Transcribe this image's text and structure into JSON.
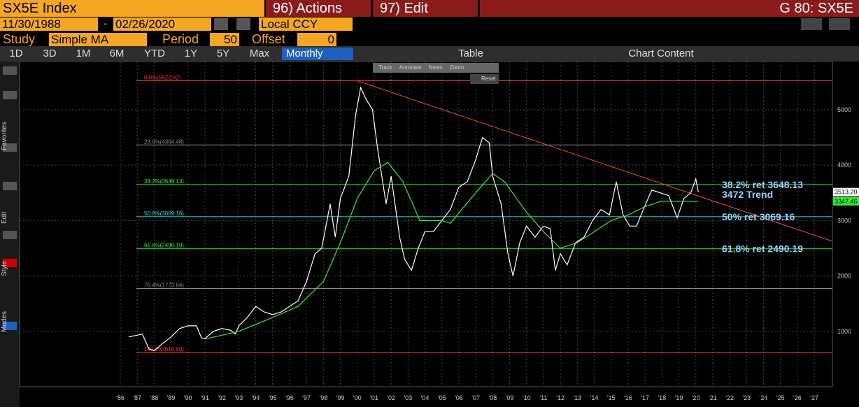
{
  "header": {
    "ticker": "SX5E Index",
    "actions": "96) Actions",
    "edit": "97) Edit",
    "code": "G 80: SX5E"
  },
  "dates": {
    "start": "11/30/1988",
    "separator": "-",
    "end": "02/26/2020",
    "currency": "Local CCY"
  },
  "study": {
    "label": "Study",
    "value": "Simple MA",
    "period_label": "Period",
    "period": 50,
    "offset_label": "Offset",
    "offset": 0
  },
  "toolbar": {
    "ranges": [
      "1D",
      "3D",
      "1M",
      "6M",
      "YTD",
      "1Y",
      "5Y",
      "Max"
    ],
    "interval": "Monthly",
    "table": "Table",
    "chart_content": "Chart Content"
  },
  "mini_toolbar": {
    "items": [
      "Track",
      "Annotate",
      "News",
      "Zoom"
    ],
    "reset": "Reset"
  },
  "sidebar": {
    "sections": [
      "Favorites",
      "Edit",
      "Style",
      "Modes"
    ]
  },
  "chart_data": {
    "type": "line",
    "grid": true,
    "xlim": [
      1980.05,
      2028.07
    ],
    "ylim": [
      0,
      5870
    ],
    "yticks": [
      1000,
      2000,
      3000,
      4000,
      5000
    ],
    "xticks": [
      {
        "value": 1986,
        "label": "'86"
      },
      {
        "value": 1987,
        "label": "'87"
      },
      {
        "value": 1988,
        "label": "'88"
      },
      {
        "value": 1989,
        "label": "'89"
      },
      {
        "value": 1990,
        "label": "'90"
      },
      {
        "value": 1991,
        "label": "'91"
      },
      {
        "value": 1992,
        "label": "'92"
      },
      {
        "value": 1993,
        "label": "'93"
      },
      {
        "value": 1994,
        "label": "'94"
      },
      {
        "value": 1995,
        "label": "'95"
      },
      {
        "value": 1996,
        "label": "'96"
      },
      {
        "value": 1997,
        "label": "'97"
      },
      {
        "value": 1998,
        "label": "'98"
      },
      {
        "value": 1999,
        "label": "'99"
      },
      {
        "value": 2000,
        "label": "'00"
      },
      {
        "value": 2001,
        "label": "'01"
      },
      {
        "value": 2002,
        "label": "'02"
      },
      {
        "value": 2003,
        "label": "'03"
      },
      {
        "value": 2004,
        "label": "'04"
      },
      {
        "value": 2005,
        "label": "'05"
      },
      {
        "value": 2006,
        "label": "'06"
      },
      {
        "value": 2007,
        "label": "'07"
      },
      {
        "value": 2008,
        "label": "'08"
      },
      {
        "value": 2009,
        "label": "'09"
      },
      {
        "value": 2010,
        "label": "'10"
      },
      {
        "value": 2011,
        "label": "'11"
      },
      {
        "value": 2012,
        "label": "'12"
      },
      {
        "value": 2013,
        "label": "'13"
      },
      {
        "value": 2014,
        "label": "'14"
      },
      {
        "value": 2015,
        "label": "'15"
      },
      {
        "value": 2016,
        "label": "'16"
      },
      {
        "value": 2017,
        "label": "'17"
      },
      {
        "value": 2018,
        "label": "'18"
      },
      {
        "value": 2019,
        "label": "'19"
      },
      {
        "value": 2020,
        "label": "'20"
      },
      {
        "value": 2021,
        "label": "'21"
      },
      {
        "value": 2022,
        "label": "'22"
      },
      {
        "value": 2023,
        "label": "'23"
      },
      {
        "value": 2024,
        "label": "'24"
      },
      {
        "value": 2025,
        "label": "'25"
      },
      {
        "value": 2026,
        "label": "'26"
      },
      {
        "value": 2027,
        "label": "'27"
      }
    ],
    "series": [
      {
        "color": "#ffffff",
        "x": [
          1986.5,
          1987.0,
          1987.3,
          1987.7,
          1988.0,
          1988.5,
          1989.0,
          1989.5,
          1990.0,
          1990.5,
          1990.8,
          1991.0,
          1991.5,
          1992.0,
          1992.5,
          1992.8,
          1993.0,
          1993.5,
          1994.0,
          1994.5,
          1995.0,
          1995.5,
          1996.0,
          1996.5,
          1997.0,
          1997.5,
          1997.9,
          1998.4,
          1998.7,
          1999.0,
          1999.5,
          1999.9,
          2000.2,
          2000.5,
          2000.9,
          2001.2,
          2001.7,
          2002.0,
          2002.5,
          2002.8,
          2003.2,
          2003.6,
          2004.0,
          2004.5,
          2005.0,
          2005.5,
          2006.0,
          2006.5,
          2007.0,
          2007.4,
          2007.8,
          2008.0,
          2008.5,
          2008.9,
          2009.2,
          2009.6,
          2010.0,
          2010.5,
          2011.0,
          2011.4,
          2011.7,
          2012.0,
          2012.4,
          2012.9,
          2013.4,
          2013.9,
          2014.4,
          2014.9,
          2015.3,
          2015.7,
          2016.1,
          2016.5,
          2016.9,
          2017.4,
          2017.9,
          2018.4,
          2018.9,
          2019.3,
          2019.7,
          2020.0,
          2020.15
        ],
        "values": [
          900,
          930,
          950,
          680,
          650,
          780,
          900,
          1050,
          1100,
          1100,
          880,
          870,
          1000,
          1050,
          1020,
          950,
          1100,
          1250,
          1450,
          1350,
          1300,
          1350,
          1450,
          1550,
          1900,
          2400,
          2500,
          3300,
          2700,
          3400,
          3800,
          4900,
          5400,
          5200,
          5000,
          4300,
          3300,
          3800,
          2700,
          2300,
          2100,
          2500,
          2800,
          2800,
          3000,
          3200,
          3600,
          3700,
          4100,
          4500,
          4400,
          3800,
          3300,
          2400,
          2000,
          2600,
          2900,
          2700,
          2900,
          2850,
          2100,
          2400,
          2200,
          2600,
          2700,
          3000,
          3200,
          3100,
          3700,
          3100,
          2900,
          2900,
          3200,
          3550,
          3500,
          3450,
          3050,
          3400,
          3500,
          3750,
          3513.2
        ]
      },
      {
        "color": "#33ee33",
        "x": [
          1991.0,
          1993.0,
          1995.0,
          1996.5,
          1998.0,
          1999.0,
          2000.0,
          2001.0,
          2001.8,
          2002.7,
          2003.7,
          2005.0,
          2005.5,
          2007.0,
          2008.0,
          2008.7,
          2010.0,
          2011.0,
          2012.0,
          2013.0,
          2014.0,
          2015.0,
          2016.0,
          2017.0,
          2018.0,
          2019.0,
          2020.15
        ],
        "values": [
          860,
          1000,
          1250,
          1450,
          1900,
          2600,
          3400,
          3900,
          4050,
          3700,
          3000,
          3000,
          2950,
          3500,
          3850,
          3700,
          3150,
          2800,
          2500,
          2600,
          2800,
          3000,
          3100,
          3250,
          3350,
          3350,
          3347.46
        ]
      }
    ],
    "trendline": {
      "color": "#ff4444",
      "x": [
        2000.0,
        2028.07
      ],
      "values": [
        5522.42,
        2626
      ]
    },
    "levels": [
      {
        "label": "0.0%(5522.42)",
        "value": 5522.42,
        "color": "#ff3333"
      },
      {
        "label": "23.6%(4364.48)",
        "value": 4364.48,
        "color": "#888888"
      },
      {
        "label": "38.2%(3648.13)",
        "value": 3648.13,
        "color": "#33ee33"
      },
      {
        "label": "50.0%(3069.16)",
        "value": 3069.16,
        "color": "#33dddd"
      },
      {
        "label": "61.8%(2490.19)",
        "value": 2490.19,
        "color": "#33ee33"
      },
      {
        "label": "76.4%(1773.84)",
        "value": 1773.84,
        "color": "#888888"
      },
      {
        "label": "100.0%(615.90)",
        "value": 615.9,
        "color": "#ff3333"
      }
    ],
    "annotations": [
      {
        "text": "38.2% ret 3648.13",
        "value": 3648.13
      },
      {
        "text": "3472 Trend",
        "value": 3472
      },
      {
        "text": "50% ret 3069.16",
        "value": 3069.16
      },
      {
        "text": "61.8% ret 2490.19",
        "value": 2490.19
      }
    ],
    "price_tags": [
      {
        "value": 3513.2,
        "label": "3513.20",
        "color": "#ffffff"
      },
      {
        "value": 3347.46,
        "label": "3347.46",
        "color": "#33ee33"
      }
    ]
  }
}
